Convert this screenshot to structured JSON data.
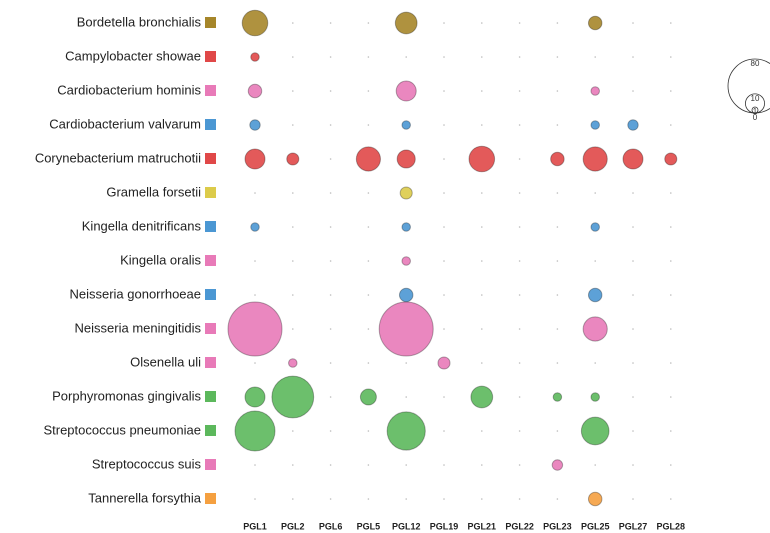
{
  "chart_data": {
    "type": "bubble",
    "x": [
      "PGL1",
      "PGL2",
      "PGL6",
      "PGL5",
      "PGL12",
      "PGL19",
      "PGL21",
      "PGL22",
      "PGL23",
      "PGL25",
      "PGL27",
      "PGL28"
    ],
    "size_legend": [
      80,
      10,
      1,
      0
    ],
    "series": [
      {
        "name": "Bordetella bronchialis",
        "color": "#a6862a",
        "values": [
          18,
          0,
          0,
          0,
          13,
          0,
          0,
          0,
          0,
          5,
          0,
          0
        ]
      },
      {
        "name": "Campylobacter showae",
        "color": "#e04848",
        "values": [
          2,
          0,
          0,
          0,
          0,
          0,
          0,
          0,
          0,
          0,
          0,
          0
        ]
      },
      {
        "name": "Cardiobacterium hominis",
        "color": "#e87ab8",
        "values": [
          5,
          0,
          0,
          0,
          11,
          0,
          0,
          0,
          0,
          2,
          0,
          0
        ]
      },
      {
        "name": "Cardiobacterium valvarum",
        "color": "#4b97d3",
        "values": [
          3,
          0,
          0,
          0,
          2,
          0,
          0,
          0,
          0,
          2,
          3,
          0
        ]
      },
      {
        "name": "Corynebacterium matruchotii",
        "color": "#e04848",
        "values": [
          11,
          4,
          0,
          16,
          9,
          0,
          18,
          0,
          5,
          16,
          11,
          4
        ]
      },
      {
        "name": "Gramella forsetii",
        "color": "#dccb4a",
        "values": [
          0,
          0,
          0,
          0,
          4,
          0,
          0,
          0,
          0,
          0,
          0,
          0
        ]
      },
      {
        "name": "Kingella denitrificans",
        "color": "#4b97d3",
        "values": [
          2,
          0,
          0,
          0,
          2,
          0,
          0,
          0,
          0,
          2,
          0,
          0
        ]
      },
      {
        "name": "Kingella oralis",
        "color": "#e87ab8",
        "values": [
          0,
          0,
          0,
          0,
          2,
          0,
          0,
          0,
          0,
          0,
          0,
          0
        ]
      },
      {
        "name": "Neisseria gonorrhoeae",
        "color": "#4b97d3",
        "values": [
          0,
          0,
          0,
          0,
          5,
          0,
          0,
          0,
          0,
          5,
          0,
          0
        ]
      },
      {
        "name": "Neisseria meningitidis",
        "color": "#e87ab8",
        "values": [
          80,
          0,
          0,
          0,
          80,
          0,
          0,
          0,
          0,
          16,
          0,
          0
        ]
      },
      {
        "name": "Olsenella uli",
        "color": "#e87ab8",
        "values": [
          0,
          2,
          0,
          0,
          0,
          4,
          0,
          0,
          0,
          0,
          0,
          0
        ]
      },
      {
        "name": "Porphyromonas gingivalis",
        "color": "#5cb85c",
        "values": [
          11,
          48,
          0,
          7,
          0,
          0,
          13,
          0,
          2,
          2,
          0,
          0
        ]
      },
      {
        "name": "Streptococcus pneumoniae",
        "color": "#5cb85c",
        "values": [
          44,
          0,
          0,
          0,
          40,
          0,
          0,
          0,
          0,
          21,
          0,
          0
        ]
      },
      {
        "name": "Streptococcus suis",
        "color": "#e87ab8",
        "values": [
          0,
          0,
          0,
          0,
          0,
          0,
          0,
          0,
          3,
          0,
          0,
          0
        ]
      },
      {
        "name": "Tannerella forsythia",
        "color": "#f5a040",
        "values": [
          0,
          0,
          0,
          0,
          0,
          0,
          0,
          0,
          0,
          5,
          0,
          0
        ]
      }
    ]
  }
}
